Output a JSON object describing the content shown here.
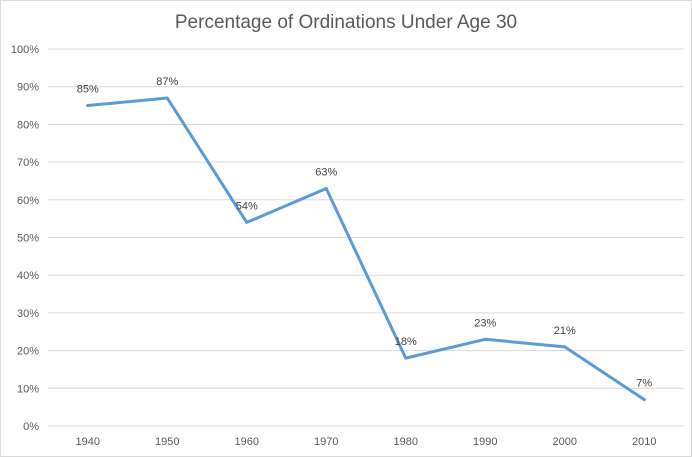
{
  "chart_data": {
    "type": "line",
    "title": "Percentage of Ordinations Under Age 30",
    "xlabel": "",
    "ylabel": "",
    "categories": [
      "1940",
      "1950",
      "1960",
      "1970",
      "1980",
      "1990",
      "2000",
      "2010"
    ],
    "series": [
      {
        "values": [
          85,
          87,
          54,
          63,
          18,
          23,
          21,
          7
        ],
        "color": "#5b9bd5"
      }
    ],
    "data_labels": [
      "85%",
      "87%",
      "54%",
      "63%",
      "18%",
      "23%",
      "21%",
      "7%"
    ],
    "ylim": [
      0,
      100
    ],
    "y_ticks": [
      0,
      10,
      20,
      30,
      40,
      50,
      60,
      70,
      80,
      90,
      100
    ],
    "y_tick_labels": [
      "0%",
      "10%",
      "20%",
      "30%",
      "40%",
      "50%",
      "60%",
      "70%",
      "80%",
      "90%",
      "100%"
    ],
    "grid": true,
    "legend": "none"
  }
}
